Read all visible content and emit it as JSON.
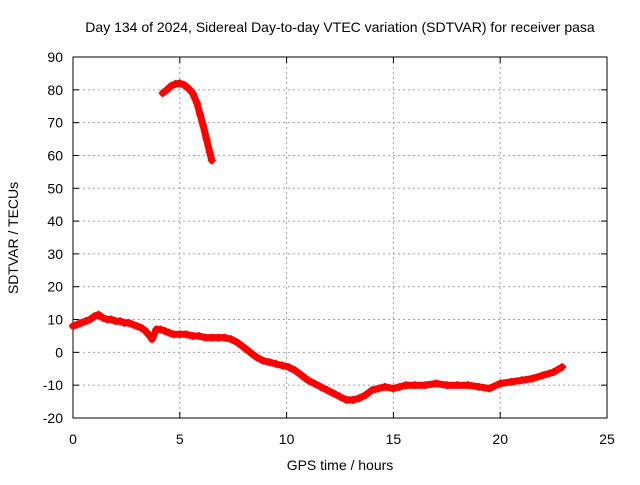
{
  "chart_data": {
    "type": "scatter",
    "title": "Day 134 of 2024, Sidereal Day-to-day VTEC variation (SDTVAR) for receiver pasa",
    "xlabel": "GPS time / hours",
    "ylabel": "SDTVAR / TECUs",
    "xlim": [
      0,
      25
    ],
    "ylim": [
      -20,
      90
    ],
    "xticks": [
      0,
      5,
      10,
      15,
      20,
      25
    ],
    "yticks": [
      -20,
      -10,
      0,
      10,
      20,
      30,
      40,
      50,
      60,
      70,
      80,
      90
    ],
    "grid": true,
    "marker": "+",
    "series_color": "#ff0000",
    "series": [
      {
        "name": "upper arc",
        "points": [
          [
            4.2,
            79
          ],
          [
            4.4,
            80
          ],
          [
            4.6,
            81.2
          ],
          [
            4.8,
            81.8
          ],
          [
            5.0,
            82
          ],
          [
            5.2,
            81.5
          ],
          [
            5.4,
            80.5
          ],
          [
            5.6,
            79
          ],
          [
            5.8,
            76
          ],
          [
            5.95,
            72.5
          ],
          [
            6.1,
            69
          ],
          [
            6.25,
            65
          ],
          [
            6.4,
            61
          ],
          [
            6.5,
            58.5
          ]
        ]
      },
      {
        "name": "main track",
        "points": [
          [
            0.0,
            8
          ],
          [
            0.2,
            8.5
          ],
          [
            0.4,
            9
          ],
          [
            0.6,
            9.5
          ],
          [
            0.8,
            10
          ],
          [
            1.0,
            11
          ],
          [
            1.2,
            11.5
          ],
          [
            1.4,
            10.5
          ],
          [
            1.6,
            10
          ],
          [
            1.8,
            10
          ],
          [
            2.0,
            9.5
          ],
          [
            2.2,
            9.5
          ],
          [
            2.4,
            9
          ],
          [
            2.6,
            9
          ],
          [
            2.8,
            8.5
          ],
          [
            3.0,
            8
          ],
          [
            3.2,
            7.5
          ],
          [
            3.4,
            6.5
          ],
          [
            3.6,
            5
          ],
          [
            3.7,
            4
          ],
          [
            3.9,
            7
          ],
          [
            4.1,
            7
          ],
          [
            4.3,
            6.5
          ],
          [
            4.5,
            6
          ],
          [
            4.7,
            5.5
          ],
          [
            5.0,
            5.5
          ],
          [
            5.3,
            5.5
          ],
          [
            5.6,
            5
          ],
          [
            5.9,
            5
          ],
          [
            6.2,
            4.5
          ],
          [
            6.5,
            4.5
          ],
          [
            6.8,
            4.5
          ],
          [
            7.1,
            4.5
          ],
          [
            7.4,
            4
          ],
          [
            7.7,
            3
          ],
          [
            8.0,
            1.5
          ],
          [
            8.3,
            0
          ],
          [
            8.6,
            -1.5
          ],
          [
            8.9,
            -2.5
          ],
          [
            9.2,
            -3
          ],
          [
            9.5,
            -3.5
          ],
          [
            9.8,
            -4
          ],
          [
            10.1,
            -4.5
          ],
          [
            10.4,
            -5.5
          ],
          [
            10.7,
            -7
          ],
          [
            11.0,
            -8.5
          ],
          [
            11.3,
            -9.5
          ],
          [
            11.6,
            -10.5
          ],
          [
            11.9,
            -11.5
          ],
          [
            12.2,
            -12.5
          ],
          [
            12.5,
            -13.5
          ],
          [
            12.8,
            -14.5
          ],
          [
            13.1,
            -14.5
          ],
          [
            13.4,
            -14
          ],
          [
            13.7,
            -13
          ],
          [
            14.0,
            -11.5
          ],
          [
            14.3,
            -11
          ],
          [
            14.6,
            -10.5
          ],
          [
            15.0,
            -11
          ],
          [
            15.3,
            -10.5
          ],
          [
            15.6,
            -10
          ],
          [
            16.0,
            -10
          ],
          [
            16.5,
            -10
          ],
          [
            17.0,
            -9.5
          ],
          [
            17.5,
            -10
          ],
          [
            18.0,
            -10
          ],
          [
            18.5,
            -10
          ],
          [
            19.0,
            -10.5
          ],
          [
            19.5,
            -11
          ],
          [
            20.0,
            -9.5
          ],
          [
            20.5,
            -9
          ],
          [
            21.0,
            -8.5
          ],
          [
            21.5,
            -8
          ],
          [
            22.0,
            -7
          ],
          [
            22.5,
            -6
          ],
          [
            22.9,
            -4.5
          ]
        ]
      }
    ]
  }
}
